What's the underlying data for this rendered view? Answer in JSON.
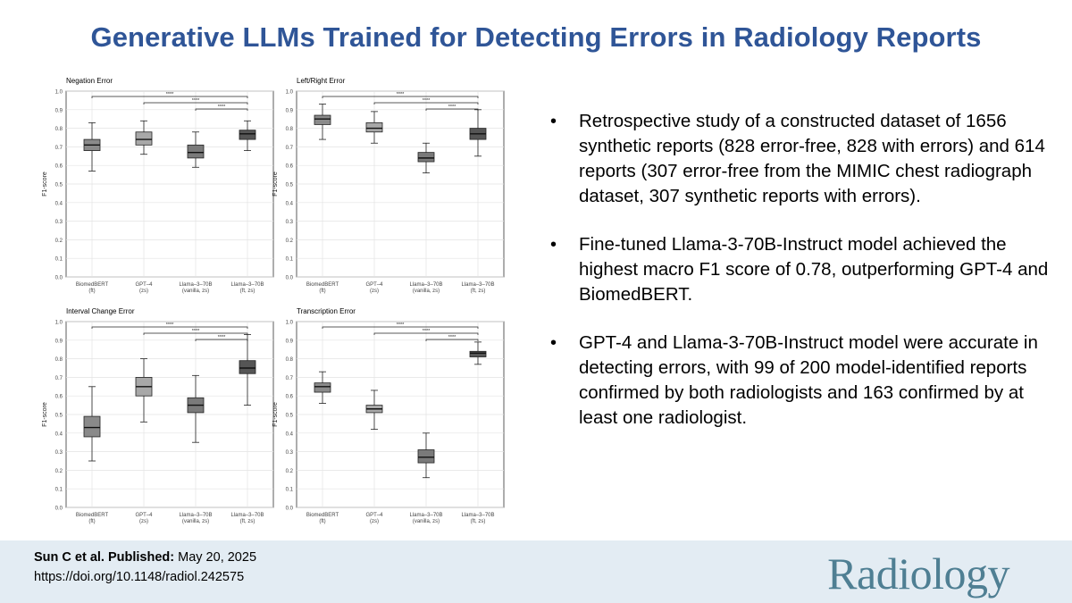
{
  "title": "Generative LLMs Trained for Detecting Errors in Radiology Reports",
  "chart_data": [
    {
      "type": "box",
      "title": "Negation Error",
      "ylabel": "F1-score",
      "ylim": [
        0,
        1
      ],
      "yticks": [
        "0.0",
        "0.1",
        "0.2",
        "0.3",
        "0.4",
        "0.5",
        "0.6",
        "0.7",
        "0.8",
        "0.9",
        "1.0"
      ],
      "categories": [
        [
          "BiomedBERT",
          "(ft)"
        ],
        [
          "GPT–4",
          "(zs)"
        ],
        [
          "Llama–3–70B",
          "(vanilla, zs)"
        ],
        [
          "Llama–3–70B",
          "(ft, zs)"
        ]
      ],
      "boxes": [
        {
          "min": 0.57,
          "q1": 0.68,
          "median": 0.71,
          "q3": 0.74,
          "max": 0.83,
          "fill": "#8a8a8a"
        },
        {
          "min": 0.66,
          "q1": 0.71,
          "median": 0.74,
          "q3": 0.78,
          "max": 0.84,
          "fill": "#a8a8a8"
        },
        {
          "min": 0.59,
          "q1": 0.64,
          "median": 0.67,
          "q3": 0.71,
          "max": 0.78,
          "fill": "#7a7a7a"
        },
        {
          "min": 0.68,
          "q1": 0.74,
          "median": 0.77,
          "q3": 0.79,
          "max": 0.84,
          "fill": "#555555"
        }
      ],
      "significance": [
        {
          "from": 0,
          "to": 3,
          "label": "****"
        },
        {
          "from": 1,
          "to": 3,
          "label": "****"
        },
        {
          "from": 2,
          "to": 3,
          "label": "****"
        }
      ]
    },
    {
      "type": "box",
      "title": "Left/Right Error",
      "ylabel": "F1-score",
      "ylim": [
        0,
        1
      ],
      "yticks": [
        "0.0",
        "0.1",
        "0.2",
        "0.3",
        "0.4",
        "0.5",
        "0.6",
        "0.7",
        "0.8",
        "0.9",
        "1.0"
      ],
      "categories": [
        [
          "BiomedBERT",
          "(ft)"
        ],
        [
          "GPT–4",
          "(zs)"
        ],
        [
          "Llama–3–70B",
          "(vanilla, zs)"
        ],
        [
          "Llama–3–70B",
          "(ft, zs)"
        ]
      ],
      "boxes": [
        {
          "min": 0.74,
          "q1": 0.82,
          "median": 0.85,
          "q3": 0.87,
          "max": 0.93,
          "fill": "#8a8a8a"
        },
        {
          "min": 0.72,
          "q1": 0.78,
          "median": 0.8,
          "q3": 0.83,
          "max": 0.89,
          "fill": "#a8a8a8"
        },
        {
          "min": 0.56,
          "q1": 0.62,
          "median": 0.64,
          "q3": 0.67,
          "max": 0.72,
          "fill": "#7a7a7a"
        },
        {
          "min": 0.65,
          "q1": 0.74,
          "median": 0.77,
          "q3": 0.8,
          "max": 0.9,
          "fill": "#555555"
        }
      ],
      "significance": [
        {
          "from": 0,
          "to": 3,
          "label": "****"
        },
        {
          "from": 1,
          "to": 3,
          "label": "****"
        },
        {
          "from": 2,
          "to": 3,
          "label": "****"
        }
      ]
    },
    {
      "type": "box",
      "title": "Interval Change Error",
      "ylabel": "F1-score",
      "ylim": [
        0,
        1
      ],
      "yticks": [
        "0.0",
        "0.1",
        "0.2",
        "0.3",
        "0.4",
        "0.5",
        "0.6",
        "0.7",
        "0.8",
        "0.9",
        "1.0"
      ],
      "categories": [
        [
          "BiomedBERT",
          "(ft)"
        ],
        [
          "GPT–4",
          "(zs)"
        ],
        [
          "Llama–3–70B",
          "(vanilla, zs)"
        ],
        [
          "Llama–3–70B",
          "(ft, zs)"
        ]
      ],
      "boxes": [
        {
          "min": 0.25,
          "q1": 0.38,
          "median": 0.43,
          "q3": 0.49,
          "max": 0.65,
          "fill": "#8a8a8a"
        },
        {
          "min": 0.46,
          "q1": 0.6,
          "median": 0.65,
          "q3": 0.7,
          "max": 0.8,
          "fill": "#a8a8a8"
        },
        {
          "min": 0.35,
          "q1": 0.51,
          "median": 0.55,
          "q3": 0.59,
          "max": 0.71,
          "fill": "#7a7a7a"
        },
        {
          "min": 0.55,
          "q1": 0.72,
          "median": 0.75,
          "q3": 0.79,
          "max": 0.93,
          "fill": "#555555"
        }
      ],
      "significance": [
        {
          "from": 0,
          "to": 3,
          "label": "****"
        },
        {
          "from": 1,
          "to": 3,
          "label": "****"
        },
        {
          "from": 2,
          "to": 3,
          "label": "****"
        }
      ]
    },
    {
      "type": "box",
      "title": "Transcription Error",
      "ylabel": "F1-score",
      "ylim": [
        0,
        1
      ],
      "yticks": [
        "0.0",
        "0.1",
        "0.2",
        "0.3",
        "0.4",
        "0.5",
        "0.6",
        "0.7",
        "0.8",
        "0.9",
        "1.0"
      ],
      "categories": [
        [
          "BiomedBERT",
          "(ft)"
        ],
        [
          "GPT–4",
          "(zs)"
        ],
        [
          "Llama–3–70B",
          "(vanilla, zs)"
        ],
        [
          "Llama–3–70B",
          "(ft, zs)"
        ]
      ],
      "boxes": [
        {
          "min": 0.56,
          "q1": 0.62,
          "median": 0.65,
          "q3": 0.67,
          "max": 0.73,
          "fill": "#8a8a8a"
        },
        {
          "min": 0.42,
          "q1": 0.51,
          "median": 0.53,
          "q3": 0.55,
          "max": 0.63,
          "fill": "#a8a8a8"
        },
        {
          "min": 0.16,
          "q1": 0.24,
          "median": 0.27,
          "q3": 0.31,
          "max": 0.4,
          "fill": "#7a7a7a"
        },
        {
          "min": 0.77,
          "q1": 0.81,
          "median": 0.83,
          "q3": 0.84,
          "max": 0.89,
          "fill": "#555555"
        }
      ],
      "significance": [
        {
          "from": 0,
          "to": 3,
          "label": "****"
        },
        {
          "from": 1,
          "to": 3,
          "label": "****"
        },
        {
          "from": 2,
          "to": 3,
          "label": "****"
        }
      ]
    }
  ],
  "bullets": [
    {
      "symbol": "•",
      "text": "Retrospective study of a constructed dataset of 1656 synthetic reports (828 error-free, 828 with errors) and 614 reports (307 error-free from the MIMIC chest radiograph dataset, 307 synthetic reports with errors)."
    },
    {
      "symbol": "•",
      "text": "Fine-tuned Llama-3-70B-Instruct model achieved the highest macro F1 score of 0.78, outperforming GPT-4 and BiomedBERT."
    },
    {
      "symbol": "•",
      "text": "GPT-4 and Llama-3-70B-Instruct model were accurate in detecting errors, with 99 of 200 model-identified reports confirmed by both radiologists and 163 confirmed by at least one radiologist."
    }
  ],
  "footer": {
    "authors": "Sun C et al. Published:",
    "date": " May 20, 2025",
    "doi": "https://doi.org/10.1148/radiol.242575",
    "journal": "Radiology"
  },
  "colors": {
    "title": "#2f5597",
    "footer_bg": "#e3ecf3",
    "logo": "#4f7f93"
  }
}
